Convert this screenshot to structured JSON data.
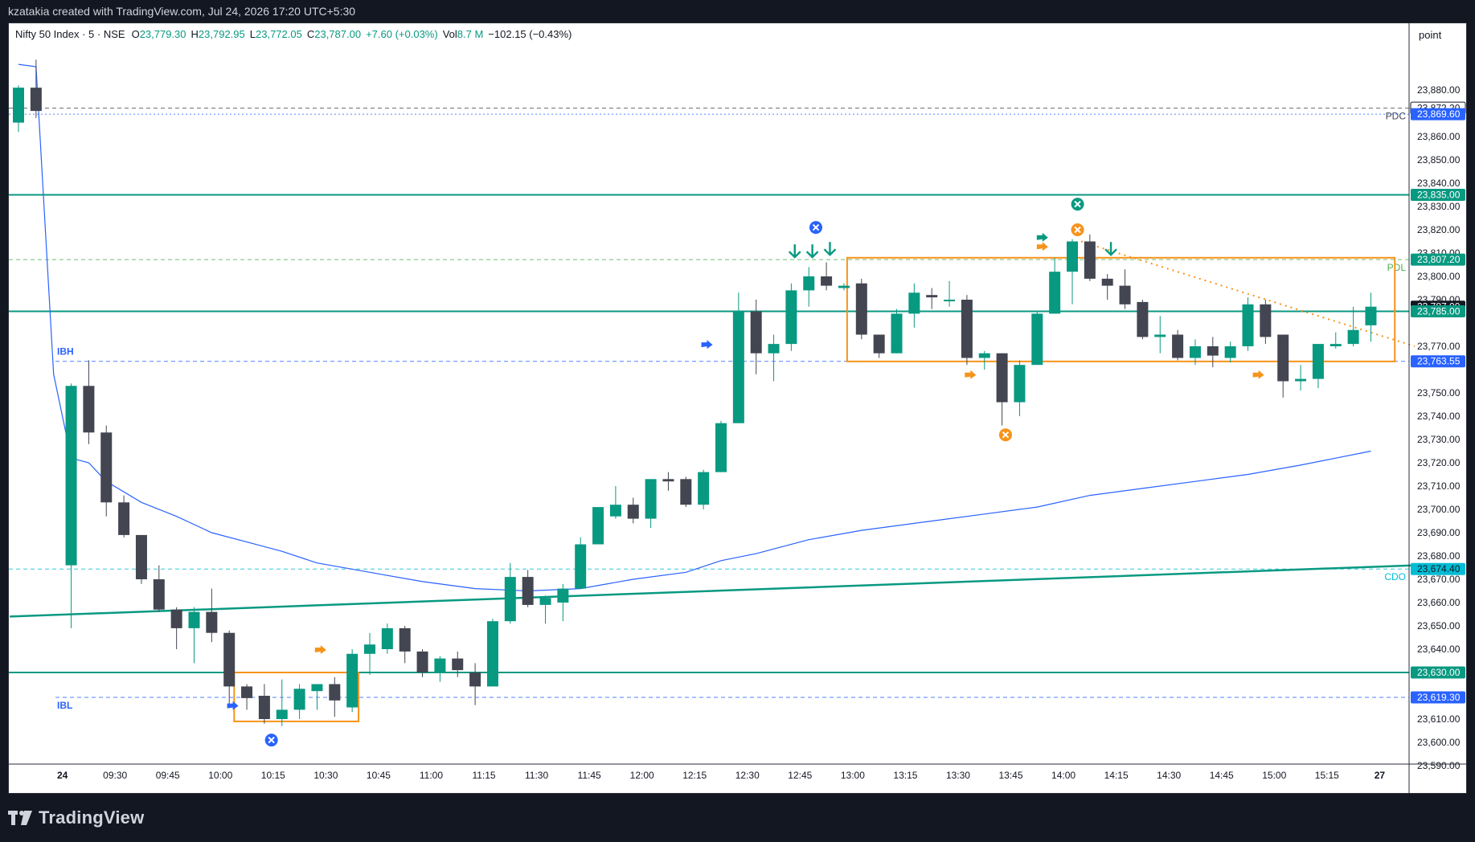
{
  "header": {
    "caption": "kzatakia created with TradingView.com, Jul 24, 2026 17:20 UTC+5:30"
  },
  "legend": {
    "symbol": "Nifty 50 Index · 5 · NSE",
    "open_label": "O",
    "open": "23,779.30",
    "high_label": "H",
    "high": "23,792.95",
    "low_label": "L",
    "low": "23,772.05",
    "close_label": "C",
    "close": "23,787.00",
    "change": "+7.60 (+0.03%)",
    "vol_label": "Vol",
    "vol": "8.7 M",
    "extra": "−102.15 (−0.43%)"
  },
  "axis": {
    "unit": "point"
  },
  "footer": {
    "brand": "TradingView"
  },
  "chart_data": {
    "type": "candlestick",
    "colors": {
      "up": "#089981",
      "down": "#434651",
      "ma": "#2962ff",
      "box": "#f7931a",
      "level": "#089981"
    },
    "ylim": [
      23582,
      23890
    ],
    "y_ticks": [
      23590,
      23600,
      23610,
      23630,
      23640,
      23650,
      23660,
      23670,
      23680,
      23690,
      23700,
      23710,
      23720,
      23730,
      23740,
      23750,
      23770,
      23790,
      23800,
      23810,
      23820,
      23830,
      23840,
      23850,
      23860,
      23880
    ],
    "x_ticks": [
      {
        "i": 2.5,
        "label": "24"
      },
      {
        "i": 5.5,
        "label": "09:30"
      },
      {
        "i": 8.5,
        "label": "09:45"
      },
      {
        "i": 11.5,
        "label": "10:00"
      },
      {
        "i": 14.5,
        "label": "10:15"
      },
      {
        "i": 17.5,
        "label": "10:30"
      },
      {
        "i": 20.5,
        "label": "10:45"
      },
      {
        "i": 23.5,
        "label": "11:00"
      },
      {
        "i": 26.5,
        "label": "11:15"
      },
      {
        "i": 29.5,
        "label": "11:30"
      },
      {
        "i": 32.5,
        "label": "11:45"
      },
      {
        "i": 35.5,
        "label": "12:00"
      },
      {
        "i": 38.5,
        "label": "12:15"
      },
      {
        "i": 41.5,
        "label": "12:30"
      },
      {
        "i": 44.5,
        "label": "12:45"
      },
      {
        "i": 47.5,
        "label": "13:00"
      },
      {
        "i": 50.5,
        "label": "13:15"
      },
      {
        "i": 53.5,
        "label": "13:30"
      },
      {
        "i": 56.5,
        "label": "13:45"
      },
      {
        "i": 59.5,
        "label": "14:00"
      },
      {
        "i": 62.5,
        "label": "14:15"
      },
      {
        "i": 65.5,
        "label": "14:30"
      },
      {
        "i": 68.5,
        "label": "14:45"
      },
      {
        "i": 71.5,
        "label": "15:00"
      },
      {
        "i": 74.5,
        "label": "15:15"
      },
      {
        "i": 77.5,
        "label": "27"
      }
    ],
    "candles": [
      {
        "i": 0,
        "o": 23866,
        "h": 23882,
        "l": 23862,
        "c": 23881
      },
      {
        "i": 1,
        "o": 23881,
        "h": 23893,
        "l": 23868,
        "c": 23871
      },
      {
        "i": 3,
        "o": 23676,
        "h": 23754,
        "l": 23649,
        "c": 23753
      },
      {
        "i": 4,
        "o": 23753,
        "h": 23764,
        "l": 23728,
        "c": 23733
      },
      {
        "i": 5,
        "o": 23733,
        "h": 23736,
        "l": 23697,
        "c": 23703
      },
      {
        "i": 6,
        "o": 23703,
        "h": 23706,
        "l": 23688,
        "c": 23689
      },
      {
        "i": 7,
        "o": 23689,
        "h": 23689,
        "l": 23668,
        "c": 23670
      },
      {
        "i": 8,
        "o": 23670,
        "h": 23676,
        "l": 23656,
        "c": 23657
      },
      {
        "i": 9,
        "o": 23657,
        "h": 23658,
        "l": 23640,
        "c": 23649
      },
      {
        "i": 10,
        "o": 23649,
        "h": 23658,
        "l": 23634,
        "c": 23656
      },
      {
        "i": 11,
        "o": 23656,
        "h": 23666,
        "l": 23643,
        "c": 23647
      },
      {
        "i": 12,
        "o": 23647,
        "h": 23648,
        "l": 23616,
        "c": 23624
      },
      {
        "i": 13,
        "o": 23624,
        "h": 23625,
        "l": 23614,
        "c": 23619
      },
      {
        "i": 14,
        "o": 23620,
        "h": 23625,
        "l": 23608,
        "c": 23610
      },
      {
        "i": 15,
        "o": 23610,
        "h": 23627,
        "l": 23607,
        "c": 23614
      },
      {
        "i": 16,
        "o": 23614,
        "h": 23625,
        "l": 23610,
        "c": 23623
      },
      {
        "i": 17,
        "o": 23622,
        "h": 23625,
        "l": 23614,
        "c": 23625
      },
      {
        "i": 18,
        "o": 23625,
        "h": 23628,
        "l": 23611,
        "c": 23618
      },
      {
        "i": 19,
        "o": 23615,
        "h": 23640,
        "l": 23613,
        "c": 23638
      },
      {
        "i": 20,
        "o": 23638,
        "h": 23647,
        "l": 23629,
        "c": 23642
      },
      {
        "i": 21,
        "o": 23640,
        "h": 23651,
        "l": 23638,
        "c": 23649
      },
      {
        "i": 22,
        "o": 23649,
        "h": 23650,
        "l": 23634,
        "c": 23639
      },
      {
        "i": 23,
        "o": 23639,
        "h": 23640,
        "l": 23628,
        "c": 23630
      },
      {
        "i": 24,
        "o": 23630,
        "h": 23637,
        "l": 23626,
        "c": 23636
      },
      {
        "i": 25,
        "o": 23636,
        "h": 23639,
        "l": 23628,
        "c": 23631
      },
      {
        "i": 26,
        "o": 23630,
        "h": 23634,
        "l": 23616,
        "c": 23624
      },
      {
        "i": 27,
        "o": 23624,
        "h": 23653,
        "l": 23624,
        "c": 23652
      },
      {
        "i": 28,
        "o": 23652,
        "h": 23677,
        "l": 23651,
        "c": 23671
      },
      {
        "i": 29,
        "o": 23671,
        "h": 23674,
        "l": 23658,
        "c": 23659
      },
      {
        "i": 30,
        "o": 23659,
        "h": 23663,
        "l": 23651,
        "c": 23662
      },
      {
        "i": 31,
        "o": 23660,
        "h": 23668,
        "l": 23652,
        "c": 23666
      },
      {
        "i": 32,
        "o": 23666,
        "h": 23688,
        "l": 23666,
        "c": 23685
      },
      {
        "i": 33,
        "o": 23685,
        "h": 23700,
        "l": 23685,
        "c": 23701
      },
      {
        "i": 34,
        "o": 23697,
        "h": 23710,
        "l": 23696,
        "c": 23702
      },
      {
        "i": 35,
        "o": 23702,
        "h": 23705,
        "l": 23694,
        "c": 23696
      },
      {
        "i": 36,
        "o": 23696,
        "h": 23713,
        "l": 23692,
        "c": 23713
      },
      {
        "i": 37,
        "o": 23713,
        "h": 23716,
        "l": 23708,
        "c": 23712
      },
      {
        "i": 38,
        "o": 23713,
        "h": 23714,
        "l": 23701,
        "c": 23702
      },
      {
        "i": 39,
        "o": 23702,
        "h": 23717,
        "l": 23700,
        "c": 23716
      },
      {
        "i": 40,
        "o": 23716,
        "h": 23738,
        "l": 23716,
        "c": 23737
      },
      {
        "i": 41,
        "o": 23737,
        "h": 23793,
        "l": 23737,
        "c": 23785
      },
      {
        "i": 42,
        "o": 23785,
        "h": 23790,
        "l": 23758,
        "c": 23767
      },
      {
        "i": 43,
        "o": 23767,
        "h": 23775,
        "l": 23755,
        "c": 23771
      },
      {
        "i": 44,
        "o": 23771,
        "h": 23797,
        "l": 23768,
        "c": 23794
      },
      {
        "i": 45,
        "o": 23794,
        "h": 23804,
        "l": 23787,
        "c": 23800
      },
      {
        "i": 46,
        "o": 23800,
        "h": 23806,
        "l": 23794,
        "c": 23796
      },
      {
        "i": 47,
        "o": 23795,
        "h": 23797,
        "l": 23794,
        "c": 23796
      },
      {
        "i": 48,
        "o": 23797,
        "h": 23799,
        "l": 23773,
        "c": 23775
      },
      {
        "i": 49,
        "o": 23775,
        "h": 23775,
        "l": 23765,
        "c": 23767
      },
      {
        "i": 50,
        "o": 23767,
        "h": 23786,
        "l": 23767,
        "c": 23784
      },
      {
        "i": 51,
        "o": 23784,
        "h": 23797,
        "l": 23778,
        "c": 23793
      },
      {
        "i": 52,
        "o": 23792,
        "h": 23795,
        "l": 23786,
        "c": 23791
      },
      {
        "i": 53,
        "o": 23790,
        "h": 23798,
        "l": 23787,
        "c": 23790
      },
      {
        "i": 54,
        "o": 23790,
        "h": 23792,
        "l": 23762,
        "c": 23765
      },
      {
        "i": 55,
        "o": 23765,
        "h": 23768,
        "l": 23760,
        "c": 23767
      },
      {
        "i": 56,
        "o": 23767,
        "h": 23767,
        "l": 23736,
        "c": 23746
      },
      {
        "i": 57,
        "o": 23746,
        "h": 23764,
        "l": 23740,
        "c": 23762
      },
      {
        "i": 58,
        "o": 23762,
        "h": 23785,
        "l": 23762,
        "c": 23784
      },
      {
        "i": 59,
        "o": 23784,
        "h": 23808,
        "l": 23784,
        "c": 23802
      },
      {
        "i": 60,
        "o": 23802,
        "h": 23816,
        "l": 23788,
        "c": 23815
      },
      {
        "i": 61,
        "o": 23815,
        "h": 23818,
        "l": 23798,
        "c": 23799
      },
      {
        "i": 62,
        "o": 23799,
        "h": 23801,
        "l": 23790,
        "c": 23796
      },
      {
        "i": 63,
        "o": 23796,
        "h": 23803,
        "l": 23786,
        "c": 23788
      },
      {
        "i": 64,
        "o": 23789,
        "h": 23790,
        "l": 23773,
        "c": 23774
      },
      {
        "i": 65,
        "o": 23774,
        "h": 23783,
        "l": 23767,
        "c": 23775
      },
      {
        "i": 66,
        "o": 23775,
        "h": 23777,
        "l": 23764,
        "c": 23765
      },
      {
        "i": 67,
        "o": 23765,
        "h": 23773,
        "l": 23762,
        "c": 23770
      },
      {
        "i": 68,
        "o": 23770,
        "h": 23774,
        "l": 23761,
        "c": 23766
      },
      {
        "i": 69,
        "o": 23765,
        "h": 23772,
        "l": 23763,
        "c": 23770
      },
      {
        "i": 70,
        "o": 23770,
        "h": 23791,
        "l": 23768,
        "c": 23788
      },
      {
        "i": 71,
        "o": 23788,
        "h": 23790,
        "l": 23771,
        "c": 23774
      },
      {
        "i": 72,
        "o": 23775,
        "h": 23775,
        "l": 23748,
        "c": 23755
      },
      {
        "i": 73,
        "o": 23755,
        "h": 23762,
        "l": 23751,
        "c": 23756
      },
      {
        "i": 74,
        "o": 23756,
        "h": 23771,
        "l": 23752,
        "c": 23771
      },
      {
        "i": 75,
        "o": 23770,
        "h": 23776,
        "l": 23769,
        "c": 23771
      },
      {
        "i": 76,
        "o": 23771,
        "h": 23787,
        "l": 23770,
        "c": 23777
      },
      {
        "i": 77,
        "o": 23779,
        "h": 23793,
        "l": 23772,
        "c": 23787
      }
    ],
    "moving_average": [
      [
        0,
        23891
      ],
      [
        1,
        23890
      ],
      [
        2,
        23758
      ],
      [
        3,
        23722
      ],
      [
        4,
        23720
      ],
      [
        5,
        23712
      ],
      [
        7,
        23703
      ],
      [
        9,
        23697
      ],
      [
        11,
        23690
      ],
      [
        13,
        23686
      ],
      [
        15,
        23682
      ],
      [
        17,
        23677
      ],
      [
        20,
        23673
      ],
      [
        23,
        23669
      ],
      [
        26,
        23666
      ],
      [
        29,
        23665
      ],
      [
        32,
        23666
      ],
      [
        35,
        23670
      ],
      [
        38,
        23673
      ],
      [
        40,
        23678
      ],
      [
        42,
        23681
      ],
      [
        45,
        23687
      ],
      [
        48,
        23691
      ],
      [
        52,
        23695
      ],
      [
        55,
        23698
      ],
      [
        58,
        23701
      ],
      [
        61,
        23706
      ],
      [
        64,
        23709
      ],
      [
        67,
        23712
      ],
      [
        70,
        23715
      ],
      [
        73,
        23719
      ],
      [
        75,
        23722
      ],
      [
        77,
        23725
      ]
    ],
    "horizontal_levels": [
      {
        "price": 23835.0,
        "style": "solid"
      },
      {
        "price": 23785.0,
        "style": "solid"
      },
      {
        "price": 23630.0,
        "style": "solid"
      }
    ],
    "trend_line": {
      "from": [
        -0.5,
        23654
      ],
      "to": [
        79.5,
        23676
      ]
    },
    "dashed_levels": [
      {
        "price": 23872.2,
        "style": "dashed-dark",
        "label": "PDC"
      },
      {
        "price": 23869.6,
        "style": "dotted-blue",
        "label": ""
      },
      {
        "price": 23807.2,
        "style": "dashed-green",
        "label": "PDL"
      },
      {
        "price": 23763.55,
        "style": "dashed-blue",
        "label": "IBH"
      },
      {
        "price": 23674.4,
        "style": "dashed-teal",
        "label": "CDO"
      },
      {
        "price": 23619.3,
        "style": "dashed-blue",
        "label": "IBL"
      }
    ],
    "price_tags": [
      {
        "price": 23880.0,
        "label": "23,880.00",
        "style": "plain"
      },
      {
        "price": 23872.2,
        "label": "23,872.20",
        "style": "dark"
      },
      {
        "price": 23869.6,
        "label": "23,869.60",
        "style": "blue"
      },
      {
        "price": 23835.0,
        "label": "23,835.00",
        "style": "green"
      },
      {
        "price": 23807.2,
        "label": "23,807.20",
        "style": "green"
      },
      {
        "price": 23787.0,
        "label": "23,787.00",
        "style": "black"
      },
      {
        "price": 23785.0,
        "label": "23,785.00",
        "style": "green"
      },
      {
        "price": 23763.55,
        "label": "23,763.55",
        "style": "blue"
      },
      {
        "price": 23674.4,
        "label": "23,674.40",
        "style": "teal"
      },
      {
        "price": 23630.0,
        "label": "23,630.00",
        "style": "green"
      },
      {
        "price": 23619.3,
        "label": "23,619.30",
        "style": "blue"
      }
    ],
    "boxes": [
      {
        "from": 12.6,
        "to": 19.5,
        "low": 23609,
        "high": 23630
      },
      {
        "from": 47.5,
        "to": 78.5,
        "low": 23763.5,
        "high": 23808
      }
    ],
    "dotted_trend": {
      "from": [
        60.5,
        23815
      ],
      "to": [
        79.5,
        23770
      ]
    },
    "markers": [
      {
        "type": "x-circle",
        "color": "#2962ff",
        "i": 14.4,
        "price": 23601
      },
      {
        "type": "x-circle",
        "color": "#2962ff",
        "i": 45.4,
        "price": 23821
      },
      {
        "type": "x-circle",
        "color": "#f7931a",
        "i": 56.2,
        "price": 23732
      },
      {
        "type": "x-circle",
        "color": "#f7931a",
        "i": 60.3,
        "price": 23820
      },
      {
        "type": "x-circle",
        "color": "#089981",
        "i": 60.3,
        "price": 23831
      },
      {
        "type": "down-arrow",
        "color": "#089981",
        "i": 44.2,
        "price": 23811
      },
      {
        "type": "down-arrow",
        "color": "#089981",
        "i": 45.2,
        "price": 23811
      },
      {
        "type": "down-arrow",
        "color": "#089981",
        "i": 46.2,
        "price": 23812
      },
      {
        "type": "down-arrow",
        "color": "#089981",
        "i": 62.2,
        "price": 23812
      },
      {
        "type": "flag",
        "color": "#2962ff",
        "i": 12.2,
        "price": 23616
      },
      {
        "type": "flag",
        "color": "#f7931a",
        "i": 17.2,
        "price": 23640
      },
      {
        "type": "flag",
        "color": "#2962ff",
        "i": 39.2,
        "price": 23771
      },
      {
        "type": "flag",
        "color": "#f7931a",
        "i": 54.2,
        "price": 23758
      },
      {
        "type": "flag",
        "color": "#f7931a",
        "i": 58.3,
        "price": 23813
      },
      {
        "type": "flag",
        "color": "#089981",
        "i": 58.3,
        "price": 23817
      },
      {
        "type": "flag",
        "color": "#f7931a",
        "i": 70.6,
        "price": 23758
      }
    ]
  }
}
